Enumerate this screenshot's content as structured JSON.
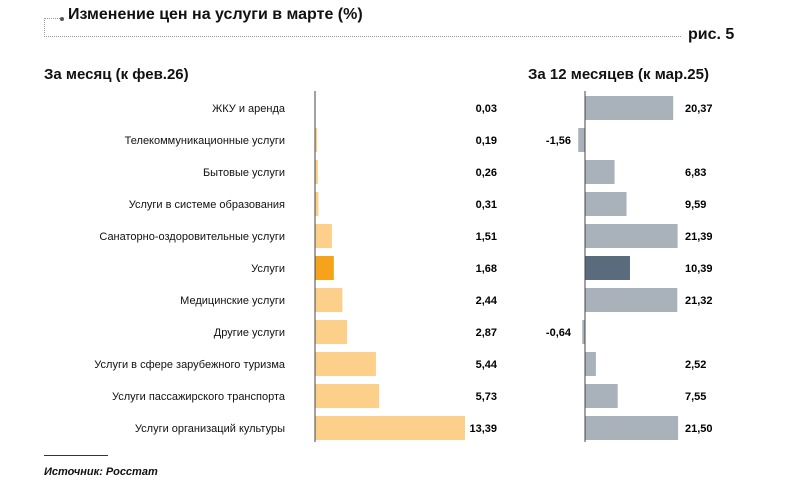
{
  "title": "Изменение цен на услуги в марте (%)",
  "figure_label": "рис. 5",
  "source": "Источник: Росстат",
  "chart_data": [
    {
      "type": "bar",
      "orientation": "horizontal",
      "title": "За месяц (к фев.26)",
      "categories": [
        "ЖКУ и аренда",
        "Телекоммуникационные услуги",
        "Бытовые услуги",
        "Услуги в системе образования",
        "Санаторно-оздоровительные услуги",
        "Услуги",
        "Медицинские услуги",
        "Другие услуги",
        "Услуги в сфере зарубежного туризма",
        "Услуги пассажирского транспорта",
        "Услуги организаций культуры"
      ],
      "values": [
        0.03,
        0.19,
        0.26,
        0.31,
        1.51,
        1.68,
        2.44,
        2.87,
        5.44,
        5.73,
        13.39
      ],
      "labels": [
        "0,03",
        "0,19",
        "0,26",
        "0,31",
        "1,51",
        "1,68",
        "2,44",
        "2,87",
        "5,44",
        "5,73",
        "13,39"
      ],
      "color": "#fcd08a",
      "highlight_color": "#f5a31a",
      "highlight_index": 5
    },
    {
      "type": "bar",
      "orientation": "horizontal",
      "title": "За 12 месяцев (к мар.25)",
      "categories": [
        "ЖКУ и аренда",
        "Телекоммуникационные услуги",
        "Бытовые услуги",
        "Услуги в системе образования",
        "Санаторно-оздоровительные услуги",
        "Услуги",
        "Медицинские услуги",
        "Другие услуги",
        "Услуги в сфере зарубежного туризма",
        "Услуги пассажирского транспорта",
        "Услуги организаций культуры"
      ],
      "values": [
        20.37,
        -1.56,
        6.83,
        9.59,
        21.39,
        10.39,
        21.32,
        -0.64,
        2.52,
        7.55,
        21.5
      ],
      "labels": [
        "20,37",
        "-1,56",
        "6,83",
        "9,59",
        "21,39",
        "10,39",
        "21,32",
        "-0,64",
        "2,52",
        "7,55",
        "21,50"
      ],
      "color": "#a9b2ba",
      "highlight_color": "#5a6b7e",
      "highlight_index": 5
    }
  ]
}
